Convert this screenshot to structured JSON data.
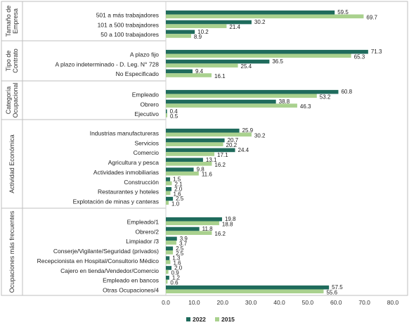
{
  "chart_data": {
    "type": "bar",
    "orientation": "horizontal",
    "xlim": [
      0,
      80
    ],
    "x_ticks": [
      "0.0",
      "10.0",
      "20.0",
      "30.0",
      "40.0",
      "50.0",
      "60.0",
      "70.0",
      "80.0"
    ],
    "grid": false,
    "legend_position": "bottom",
    "series": [
      {
        "name": "2022",
        "color": "#1f6b5c"
      },
      {
        "name": "2015",
        "color": "#a9d18e"
      }
    ],
    "groups": [
      {
        "label_lines": [
          "Tamaño de",
          "Empresa"
        ],
        "categories": [
          {
            "label": "501 a más trabajadores",
            "v2022": 59.5,
            "v2015": 69.7,
            "l2022": "59.5",
            "l2015": "69.7"
          },
          {
            "label": "101 a 500 trabajadores",
            "v2022": 30.2,
            "v2015": 21.4,
            "l2022": "30.2",
            "l2015": "21.4"
          },
          {
            "label": "50 a 100 trabajadores",
            "v2022": 10.2,
            "v2015": 8.9,
            "l2022": "10.2",
            "l2015": "8.9"
          }
        ]
      },
      {
        "label_lines": [
          "Tipo de",
          "Contrato"
        ],
        "categories": [
          {
            "label": "A plazo fijo",
            "v2022": 71.3,
            "v2015": 65.3,
            "l2022": "71.3",
            "l2015": "65.3"
          },
          {
            "label": "A plazo indeterminado - D. Leg. N° 728",
            "v2022": 36.5,
            "v2015": 25.4,
            "l2022": "36.5",
            "l2015": "25.4"
          },
          {
            "label": "No Especificado",
            "v2022": 9.4,
            "v2015": 16.1,
            "l2022": "9.4",
            "l2015": "16.1"
          }
        ]
      },
      {
        "label_lines": [
          "Categoría",
          "Ocupacional"
        ],
        "categories": [
          {
            "label": "Empleado",
            "v2022": 60.8,
            "v2015": 53.2,
            "l2022": "60.8",
            "l2015": "53.2"
          },
          {
            "label": "Obrero",
            "v2022": 38.8,
            "v2015": 46.3,
            "l2022": "38.8",
            "l2015": "46.3"
          },
          {
            "label": "Ejecutivo",
            "v2022": 0.4,
            "v2015": 0.5,
            "l2022": "0.4",
            "l2015": "0.5"
          }
        ]
      },
      {
        "label_lines": [
          "Actividad Económica"
        ],
        "categories": [
          {
            "label": "Industrias manufactureras",
            "v2022": 25.9,
            "v2015": 30.2,
            "l2022": "25.9",
            "l2015": "30.2"
          },
          {
            "label": "Servicios",
            "v2022": 20.7,
            "v2015": 20.2,
            "l2022": "20.7",
            "l2015": "20.2"
          },
          {
            "label": "Comercio",
            "v2022": 24.4,
            "v2015": 17.1,
            "l2022": "24.4",
            "l2015": "17.1"
          },
          {
            "label": "Agricultura y pesca",
            "v2022": 13.1,
            "v2015": 16.2,
            "l2022": "13.1",
            "l2015": "16.2"
          },
          {
            "label": "Actividades inmobiliarias",
            "v2022": 9.8,
            "v2015": 11.6,
            "l2022": "9.8",
            "l2015": "11.6"
          },
          {
            "label": "Construcción",
            "v2022": 1.5,
            "v2015": 2.1,
            "l2022": "1.5",
            "l2015": "2.1"
          },
          {
            "label": "Restaurantes y hoteles",
            "v2022": 2.0,
            "v2015": 1.6,
            "l2022": "2.0",
            "l2015": "1.6"
          },
          {
            "label": "Explotación de minas y canteras",
            "v2022": 2.5,
            "v2015": 1.0,
            "l2022": "2.5",
            "l2015": "1.0"
          }
        ]
      },
      {
        "label_lines": [
          "Ocupaciones más frecuentes"
        ],
        "categories": [
          {
            "label": "Empleado/1",
            "v2022": 19.8,
            "v2015": 18.8,
            "l2022": "19.8",
            "l2015": "18.8"
          },
          {
            "label": "Obrero/2",
            "v2022": 11.8,
            "v2015": 16.2,
            "l2022": "11.8",
            "l2015": "16.2"
          },
          {
            "label": "Limpiador /3",
            "v2022": 3.9,
            "v2015": 3.7,
            "l2022": "3.9",
            "l2015": "3.7"
          },
          {
            "label": "Conserje/Vigilante/Seguridad (privados)",
            "v2022": 2.5,
            "v2015": 2.5,
            "l2022": "2.5",
            "l2015": "2.5"
          },
          {
            "label": "Recepcionista en Hospital/Consultorio Médico",
            "v2022": 1.3,
            "v2015": 1.6,
            "l2022": "1.3",
            "l2015": "1.6"
          },
          {
            "label": "Cajero en tienda/Vendedor/Comercio",
            "v2022": 2.0,
            "v2015": 0.9,
            "l2022": "2.0",
            "l2015": "0.9"
          },
          {
            "label": "Empleado en bancos",
            "v2022": 1.2,
            "v2015": 0.6,
            "l2022": "1.2",
            "l2015": "0.6"
          },
          {
            "label": "Otras Ocupaciones/4",
            "v2022": 57.5,
            "v2015": 55.6,
            "l2022": "57.5",
            "l2015": "55.6"
          }
        ]
      }
    ]
  }
}
